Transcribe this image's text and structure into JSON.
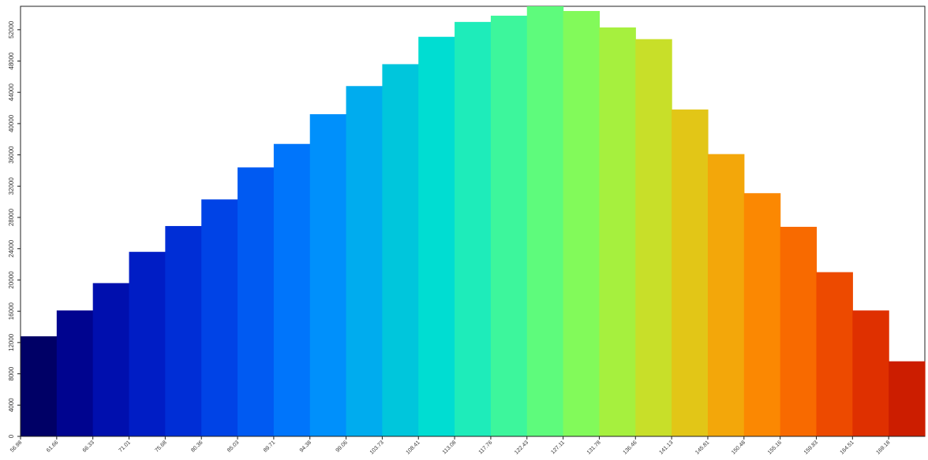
{
  "chart_data": {
    "type": "bar",
    "title": "",
    "xlabel": "",
    "ylabel": "",
    "ylim": [
      0,
      55000
    ],
    "grid": false,
    "legend": "none",
    "y_ticks": [
      0,
      4000,
      8000,
      12000,
      16000,
      20000,
      24000,
      28000,
      32000,
      36000,
      40000,
      44000,
      48000,
      52000
    ],
    "x_tick_labels": [
      "56.98",
      "61.66",
      "66.33",
      "71.01",
      "75.68",
      "80.36",
      "85.03",
      "89.71",
      "94.38",
      "99.06",
      "103.73",
      "108.41",
      "113.08",
      "117.76",
      "122.43",
      "127.11",
      "131.78",
      "136.46",
      "141.13",
      "145.81",
      "150.48",
      "155.16",
      "159.83",
      "164.51",
      "169.18"
    ],
    "values": [
      12800,
      16100,
      19600,
      23600,
      26900,
      30300,
      34400,
      37400,
      41200,
      44800,
      47600,
      51100,
      53000,
      53800,
      55000,
      54400,
      52300,
      50800,
      41800,
      36100,
      31100,
      26800,
      21000,
      16100,
      9600
    ],
    "colors": [
      "#000066",
      "#00048f",
      "#000fae",
      "#001dc5",
      "#002ed6",
      "#0043e6",
      "#005af2",
      "#0075fb",
      "#0090fb",
      "#00acee",
      "#00c6dc",
      "#00ddd2",
      "#1eecba",
      "#3df69c",
      "#5efb7c",
      "#82fa5a",
      "#a6f03e",
      "#c8df29",
      "#e2c617",
      "#f3a70a",
      "#fb8802",
      "#f86a00",
      "#ed4a00",
      "#df3000",
      "#cc1d00"
    ]
  }
}
